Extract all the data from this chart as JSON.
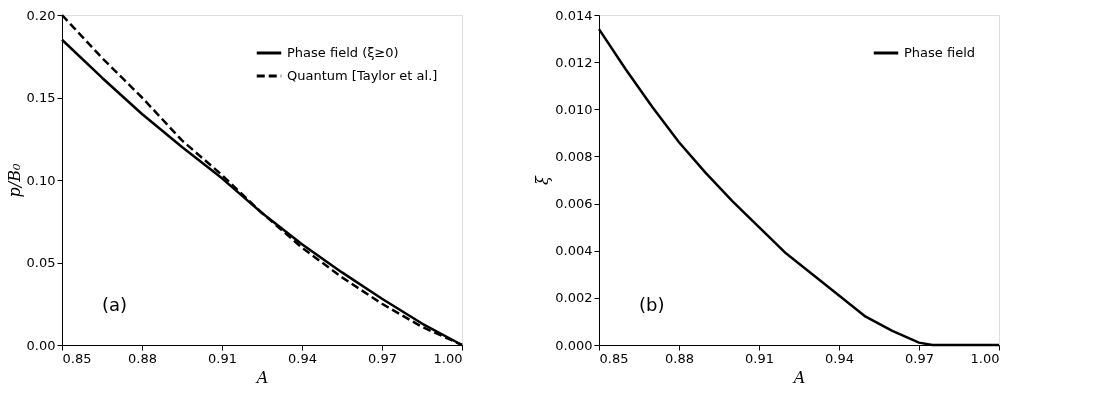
{
  "chart_data": [
    {
      "type": "line",
      "xlabel": "A",
      "ylabel": "p/B₀",
      "legend": "top right",
      "grid": false,
      "annotations": [
        "(a)"
      ],
      "xlim": [
        0.85,
        1.0
      ],
      "xticks": [
        {
          "value": 0.85,
          "label": "0.85"
        },
        {
          "value": 0.88,
          "label": "0.88"
        },
        {
          "value": 0.91,
          "label": "0.91"
        },
        {
          "value": 0.94,
          "label": "0.94"
        },
        {
          "value": 0.97,
          "label": "0.97"
        },
        {
          "value": 1.0,
          "label": "1.00"
        }
      ],
      "ylim": [
        0,
        0.2
      ],
      "yticks": [
        {
          "value": 0,
          "label": "0.00"
        },
        {
          "value": 0.05,
          "label": "0.05"
        },
        {
          "value": 0.1,
          "label": "0.10"
        },
        {
          "value": 0.15,
          "label": "0.15"
        },
        {
          "value": 0.2,
          "label": "0.20"
        }
      ],
      "x": [
        0.85,
        0.865,
        0.88,
        0.895,
        0.91,
        0.925,
        0.94,
        0.955,
        0.97,
        0.985,
        1.0
      ],
      "series": [
        {
          "name": "Phase field (ξ≥0)",
          "color": "#000000",
          "line_style": "solid",
          "values": [
            0.185,
            0.162,
            0.14,
            0.12,
            0.101,
            0.08,
            0.061,
            0.044,
            0.028,
            0.013,
            0.0
          ]
        },
        {
          "name": "Quantum [Taylor et al.]",
          "color": "#000000",
          "line_style": "dashed",
          "values": [
            0.2,
            0.174,
            0.15,
            0.124,
            0.103,
            0.08,
            0.059,
            0.041,
            0.025,
            0.011,
            0.0
          ]
        }
      ]
    },
    {
      "type": "line",
      "xlabel": "A",
      "ylabel": "ξ",
      "legend": "top right",
      "grid": false,
      "annotations": [
        "(b)"
      ],
      "xlim": [
        0.85,
        1.0
      ],
      "xticks": [
        {
          "value": 0.85,
          "label": "0.85"
        },
        {
          "value": 0.88,
          "label": "0.88"
        },
        {
          "value": 0.91,
          "label": "0.91"
        },
        {
          "value": 0.94,
          "label": "0.94"
        },
        {
          "value": 0.97,
          "label": "0.97"
        },
        {
          "value": 1.0,
          "label": "1.00"
        }
      ],
      "ylim": [
        0,
        0.014
      ],
      "yticks": [
        {
          "value": 0,
          "label": "0.000"
        },
        {
          "value": 0.002,
          "label": "0.002"
        },
        {
          "value": 0.004,
          "label": "0.004"
        },
        {
          "value": 0.006,
          "label": "0.006"
        },
        {
          "value": 0.008,
          "label": "0.008"
        },
        {
          "value": 0.01,
          "label": "0.010"
        },
        {
          "value": 0.012,
          "label": "0.012"
        },
        {
          "value": 0.014,
          "label": "0.014"
        }
      ],
      "x": [
        0.85,
        0.86,
        0.87,
        0.88,
        0.89,
        0.9,
        0.91,
        0.92,
        0.93,
        0.94,
        0.95,
        0.96,
        0.97,
        0.975,
        1.0
      ],
      "series": [
        {
          "name": "Phase field",
          "color": "#000000",
          "line_style": "solid",
          "values": [
            0.0134,
            0.0117,
            0.0101,
            0.0086,
            0.0073,
            0.0061,
            0.005,
            0.0039,
            0.003,
            0.0021,
            0.0012,
            0.0006,
            0.0001,
            0.0,
            0.0
          ]
        }
      ]
    }
  ]
}
